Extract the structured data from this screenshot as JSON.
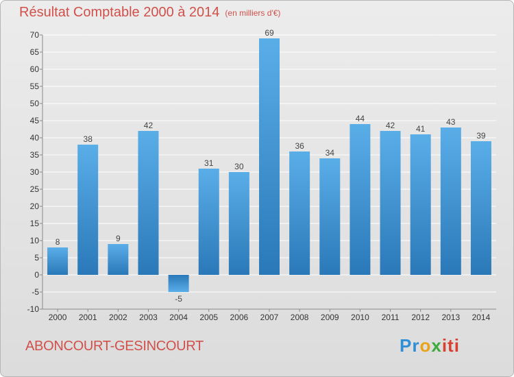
{
  "header": {
    "title": "Résultat Comptable 2000 à 2014",
    "unit": "(en milliers d'€)"
  },
  "footer": {
    "commune": "ABONCOURT-GESINCOURT",
    "logo_parts": [
      "Pr",
      "o",
      "x",
      "iti"
    ]
  },
  "colors": {
    "bar_light": "#5aaee8",
    "bar_dark": "#2a78b8",
    "title": "#d0504a",
    "grid": "#ffffff"
  },
  "chart_data": {
    "type": "bar",
    "title": "Résultat Comptable 2000 à 2014",
    "subtitle": "(en milliers d'€)",
    "xlabel": "",
    "ylabel": "",
    "categories": [
      "2000",
      "2001",
      "2002",
      "2003",
      "2004",
      "2005",
      "2006",
      "2007",
      "2008",
      "2009",
      "2010",
      "2011",
      "2012",
      "2013",
      "2014"
    ],
    "values": [
      8,
      38,
      9,
      42,
      -5,
      31,
      30,
      69,
      36,
      34,
      44,
      42,
      41,
      43,
      39
    ],
    "ylim": [
      -10,
      70
    ],
    "yticks": [
      -10,
      -5,
      0,
      5,
      10,
      15,
      20,
      25,
      30,
      35,
      40,
      45,
      50,
      55,
      60,
      65,
      70
    ],
    "grid": true
  }
}
